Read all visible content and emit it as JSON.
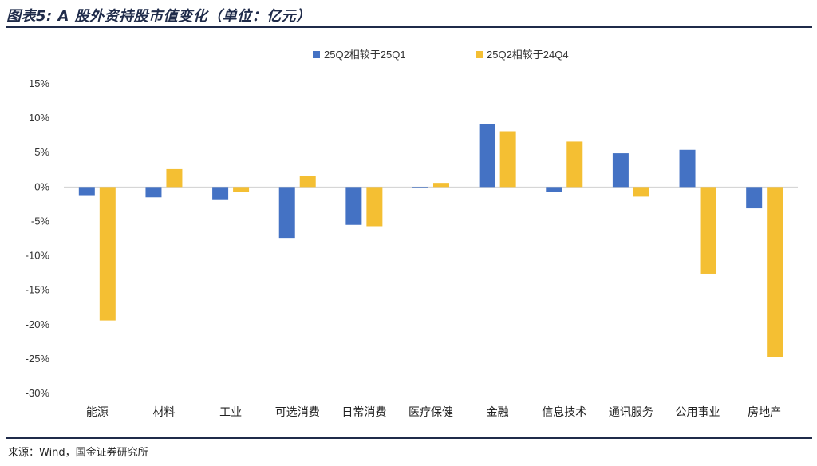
{
  "header": {
    "title": "图表5: A 股外资持股市值变化（单位：亿元）"
  },
  "footer": {
    "source": "来源：Wind，国金证券研究所"
  },
  "colors": {
    "series1": "#4472c4",
    "series2": "#f4bf33",
    "rule": "#1f2b4a"
  },
  "chart_data": {
    "type": "bar",
    "categories": [
      "能源",
      "材料",
      "工业",
      "可选消费",
      "日常消费",
      "医疗保健",
      "金融",
      "信息技术",
      "通讯服务",
      "公用事业",
      "房地产"
    ],
    "series": [
      {
        "name": "25Q2相较于25Q1",
        "values": [
          -1.3,
          -1.5,
          -1.9,
          -7.4,
          -5.5,
          -0.1,
          9.2,
          -0.7,
          4.9,
          5.4,
          -3.1
        ]
      },
      {
        "name": "25Q2相较于24Q4",
        "values": [
          -19.4,
          2.6,
          -0.7,
          1.6,
          -5.7,
          0.6,
          8.1,
          6.6,
          -1.4,
          -12.6,
          -24.7
        ]
      }
    ],
    "ylim": [
      -30,
      15
    ],
    "yticks": [
      15,
      10,
      5,
      0,
      -5,
      -10,
      -15,
      -20,
      -25,
      -30
    ],
    "ytick_labels": [
      "15%",
      "10%",
      "5%",
      "0%",
      "-5%",
      "-10%",
      "-15%",
      "-20%",
      "-25%",
      "-30%"
    ],
    "legend_position": "top-center",
    "grid": false
  }
}
